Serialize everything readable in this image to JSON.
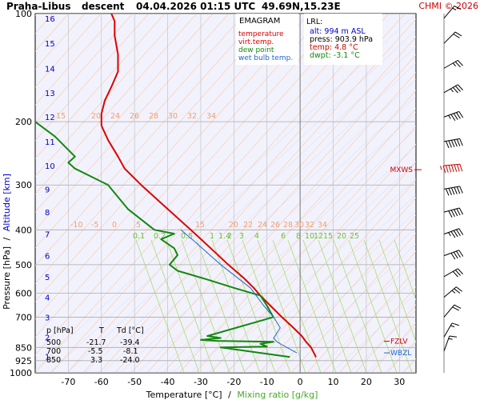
{
  "header": {
    "station": "Praha-Libus",
    "mode": "descent",
    "datetime": "04.04.2026 01:15 UTC",
    "coords": "49.69N,15.23E",
    "copyright": "CHMI © 2026"
  },
  "legend": {
    "title": "EMAGRAM",
    "items": [
      {
        "label": "temperature",
        "color": "#dd0000"
      },
      {
        "label": "virt.temp.",
        "color": "#dd0000"
      },
      {
        "label": "dew point",
        "color": "#118811"
      },
      {
        "label": "wet bulb temp.",
        "color": "#2266cc"
      }
    ]
  },
  "lrl": {
    "title": "LRL:",
    "lines": [
      {
        "text": "alt: 994 m ASL",
        "color": "#0000cc"
      },
      {
        "text": "press: 903.9 hPa",
        "color": "#000000"
      },
      {
        "text": "temp: 4.8 °C",
        "color": "#cc0000"
      },
      {
        "text": "dwpt: -3.1 °C",
        "color": "#118811"
      }
    ]
  },
  "level_table": {
    "headers": [
      "p [hPa]",
      "T",
      "Td [°C]"
    ],
    "rows": [
      [
        "500",
        "-21.7",
        "-39.4"
      ],
      [
        "700",
        "-5.5",
        "-8.1"
      ],
      [
        "850",
        "3.3",
        "-24.0"
      ]
    ]
  },
  "markers": [
    {
      "label": "MXWS",
      "pressure": 272,
      "color": "#cc0000"
    },
    {
      "label": "FZLV",
      "pressure": 817,
      "color": "#cc0000"
    },
    {
      "label": "WBZL",
      "pressure": 880,
      "color": "#2266cc"
    }
  ],
  "axes": {
    "xlabel_main": "Temperature [°C]",
    "xlabel_sep": "/",
    "xlabel_mix": "Mixing ratio [g/kg]",
    "ylabel_main": "Pressure [hPa]",
    "ylabel_sep": "/",
    "ylabel_alt": "Altitude [km]"
  },
  "chart_data": {
    "type": "line",
    "title": "EMAGRAM",
    "xlabel": "Temperature [°C]",
    "ylabel": "Pressure [hPa]",
    "xlim": [
      -80,
      35
    ],
    "ylim": [
      1000,
      100
    ],
    "y_scale": "log",
    "x_ticks": [
      -70,
      -60,
      -50,
      -40,
      -30,
      -20,
      -10,
      0,
      10,
      20,
      30
    ],
    "y_ticks": [
      100,
      200,
      300,
      400,
      500,
      600,
      700,
      850,
      925,
      1000
    ],
    "altitude_km_ticks": [
      {
        "km": 1,
        "p": 900
      },
      {
        "km": 2,
        "p": 795
      },
      {
        "km": 3,
        "p": 700
      },
      {
        "km": 4,
        "p": 616
      },
      {
        "km": 5,
        "p": 540
      },
      {
        "km": 6,
        "p": 472
      },
      {
        "km": 7,
        "p": 411
      },
      {
        "km": 8,
        "p": 357
      },
      {
        "km": 9,
        "p": 308
      },
      {
        "km": 10,
        "p": 265
      },
      {
        "km": 11,
        "p": 227
      },
      {
        "km": 12,
        "p": 194
      },
      {
        "km": 13,
        "p": 166
      },
      {
        "km": 14,
        "p": 142
      },
      {
        "km": 15,
        "p": 121
      },
      {
        "km": 16,
        "p": 103
      }
    ],
    "theta_labels": {
      "top_row": [
        "15",
        "20",
        "24",
        "26",
        "28",
        "30",
        "32",
        "34"
      ],
      "mid_row": [
        "-10",
        "-5",
        "0",
        "5",
        "15",
        "20",
        "22",
        "24",
        "26",
        "28",
        "30",
        "32",
        "34"
      ]
    },
    "mixing_ratio_labels": [
      "0.1",
      "0.2",
      "0.5",
      "1",
      "1.4",
      "2",
      "3",
      "4",
      "6",
      "8",
      "10",
      "12",
      "15",
      "20",
      "25"
    ],
    "series": [
      {
        "name": "temperature",
        "color": "#dd0000",
        "points": [
          [
            4.8,
            903.9
          ],
          [
            3.3,
            850
          ],
          [
            1.8,
            820
          ],
          [
            0.5,
            790
          ],
          [
            -2,
            750
          ],
          [
            -5.5,
            700
          ],
          [
            -9,
            650
          ],
          [
            -12,
            610
          ],
          [
            -14,
            580
          ],
          [
            -17,
            545
          ],
          [
            -21.7,
            500
          ],
          [
            -27,
            450
          ],
          [
            -33,
            400
          ],
          [
            -40,
            350
          ],
          [
            -48,
            300
          ],
          [
            -53,
            270
          ],
          [
            -55,
            250
          ],
          [
            -58,
            225
          ],
          [
            -60,
            205
          ],
          [
            -60,
            190
          ],
          [
            -59,
            175
          ],
          [
            -57,
            160
          ],
          [
            -55,
            145
          ],
          [
            -55,
            130
          ],
          [
            -56,
            115
          ],
          [
            -56,
            105
          ],
          [
            -57,
            100
          ]
        ]
      },
      {
        "name": "dew point",
        "color": "#118811",
        "points": [
          [
            -3.1,
            903.9
          ],
          [
            -24,
            850
          ],
          [
            -10,
            845
          ],
          [
            -12,
            830
          ],
          [
            -8,
            820
          ],
          [
            -25,
            815
          ],
          [
            -30,
            810
          ],
          [
            -24,
            800
          ],
          [
            -28,
            790
          ],
          [
            -8.1,
            700
          ],
          [
            -10,
            650
          ],
          [
            -12,
            610
          ],
          [
            -20,
            580
          ],
          [
            -28,
            550
          ],
          [
            -37,
            520
          ],
          [
            -39.4,
            500
          ],
          [
            -37,
            470
          ],
          [
            -38,
            450
          ],
          [
            -42,
            425
          ],
          [
            -38,
            410
          ],
          [
            -44,
            400
          ],
          [
            -52,
            350
          ],
          [
            -58,
            300
          ],
          [
            -68,
            270
          ],
          [
            -70,
            260
          ],
          [
            -68,
            250
          ],
          [
            -74,
            220
          ],
          [
            -80,
            200
          ]
        ]
      },
      {
        "name": "wet bulb temp.",
        "color": "#2266cc",
        "points": [
          [
            -1,
            880
          ],
          [
            -3,
            860
          ],
          [
            -5,
            840
          ],
          [
            -7,
            820
          ],
          [
            -8,
            800
          ],
          [
            -6,
            750
          ],
          [
            -8,
            700
          ],
          [
            -11,
            650
          ],
          [
            -15,
            580
          ],
          [
            -24,
            500
          ],
          [
            -32,
            430
          ],
          [
            -36,
            400
          ]
        ]
      }
    ],
    "level_table": [
      {
        "p": 500,
        "T": -21.7,
        "Td": -39.4
      },
      {
        "p": 700,
        "T": -5.5,
        "Td": -8.1
      },
      {
        "p": 850,
        "T": 3.3,
        "Td": -24.0
      }
    ],
    "wind_barbs": [
      {
        "p": 103,
        "dir": 220,
        "kt": 15
      },
      {
        "p": 121,
        "dir": 225,
        "kt": 20
      },
      {
        "p": 142,
        "dir": 240,
        "kt": 25
      },
      {
        "p": 166,
        "dir": 240,
        "kt": 35
      },
      {
        "p": 194,
        "dir": 250,
        "kt": 45
      },
      {
        "p": 227,
        "dir": 260,
        "kt": 60
      },
      {
        "p": 265,
        "dir": 265,
        "kt": 75
      },
      {
        "p": 308,
        "dir": 260,
        "kt": 60
      },
      {
        "p": 357,
        "dir": 255,
        "kt": 50
      },
      {
        "p": 411,
        "dir": 250,
        "kt": 45
      },
      {
        "p": 472,
        "dir": 250,
        "kt": 40
      },
      {
        "p": 540,
        "dir": 240,
        "kt": 30
      },
      {
        "p": 616,
        "dir": 230,
        "kt": 25
      },
      {
        "p": 700,
        "dir": 220,
        "kt": 20
      },
      {
        "p": 795,
        "dir": 210,
        "kt": 15
      },
      {
        "p": 870,
        "dir": 200,
        "kt": 15
      }
    ],
    "grid": true
  }
}
